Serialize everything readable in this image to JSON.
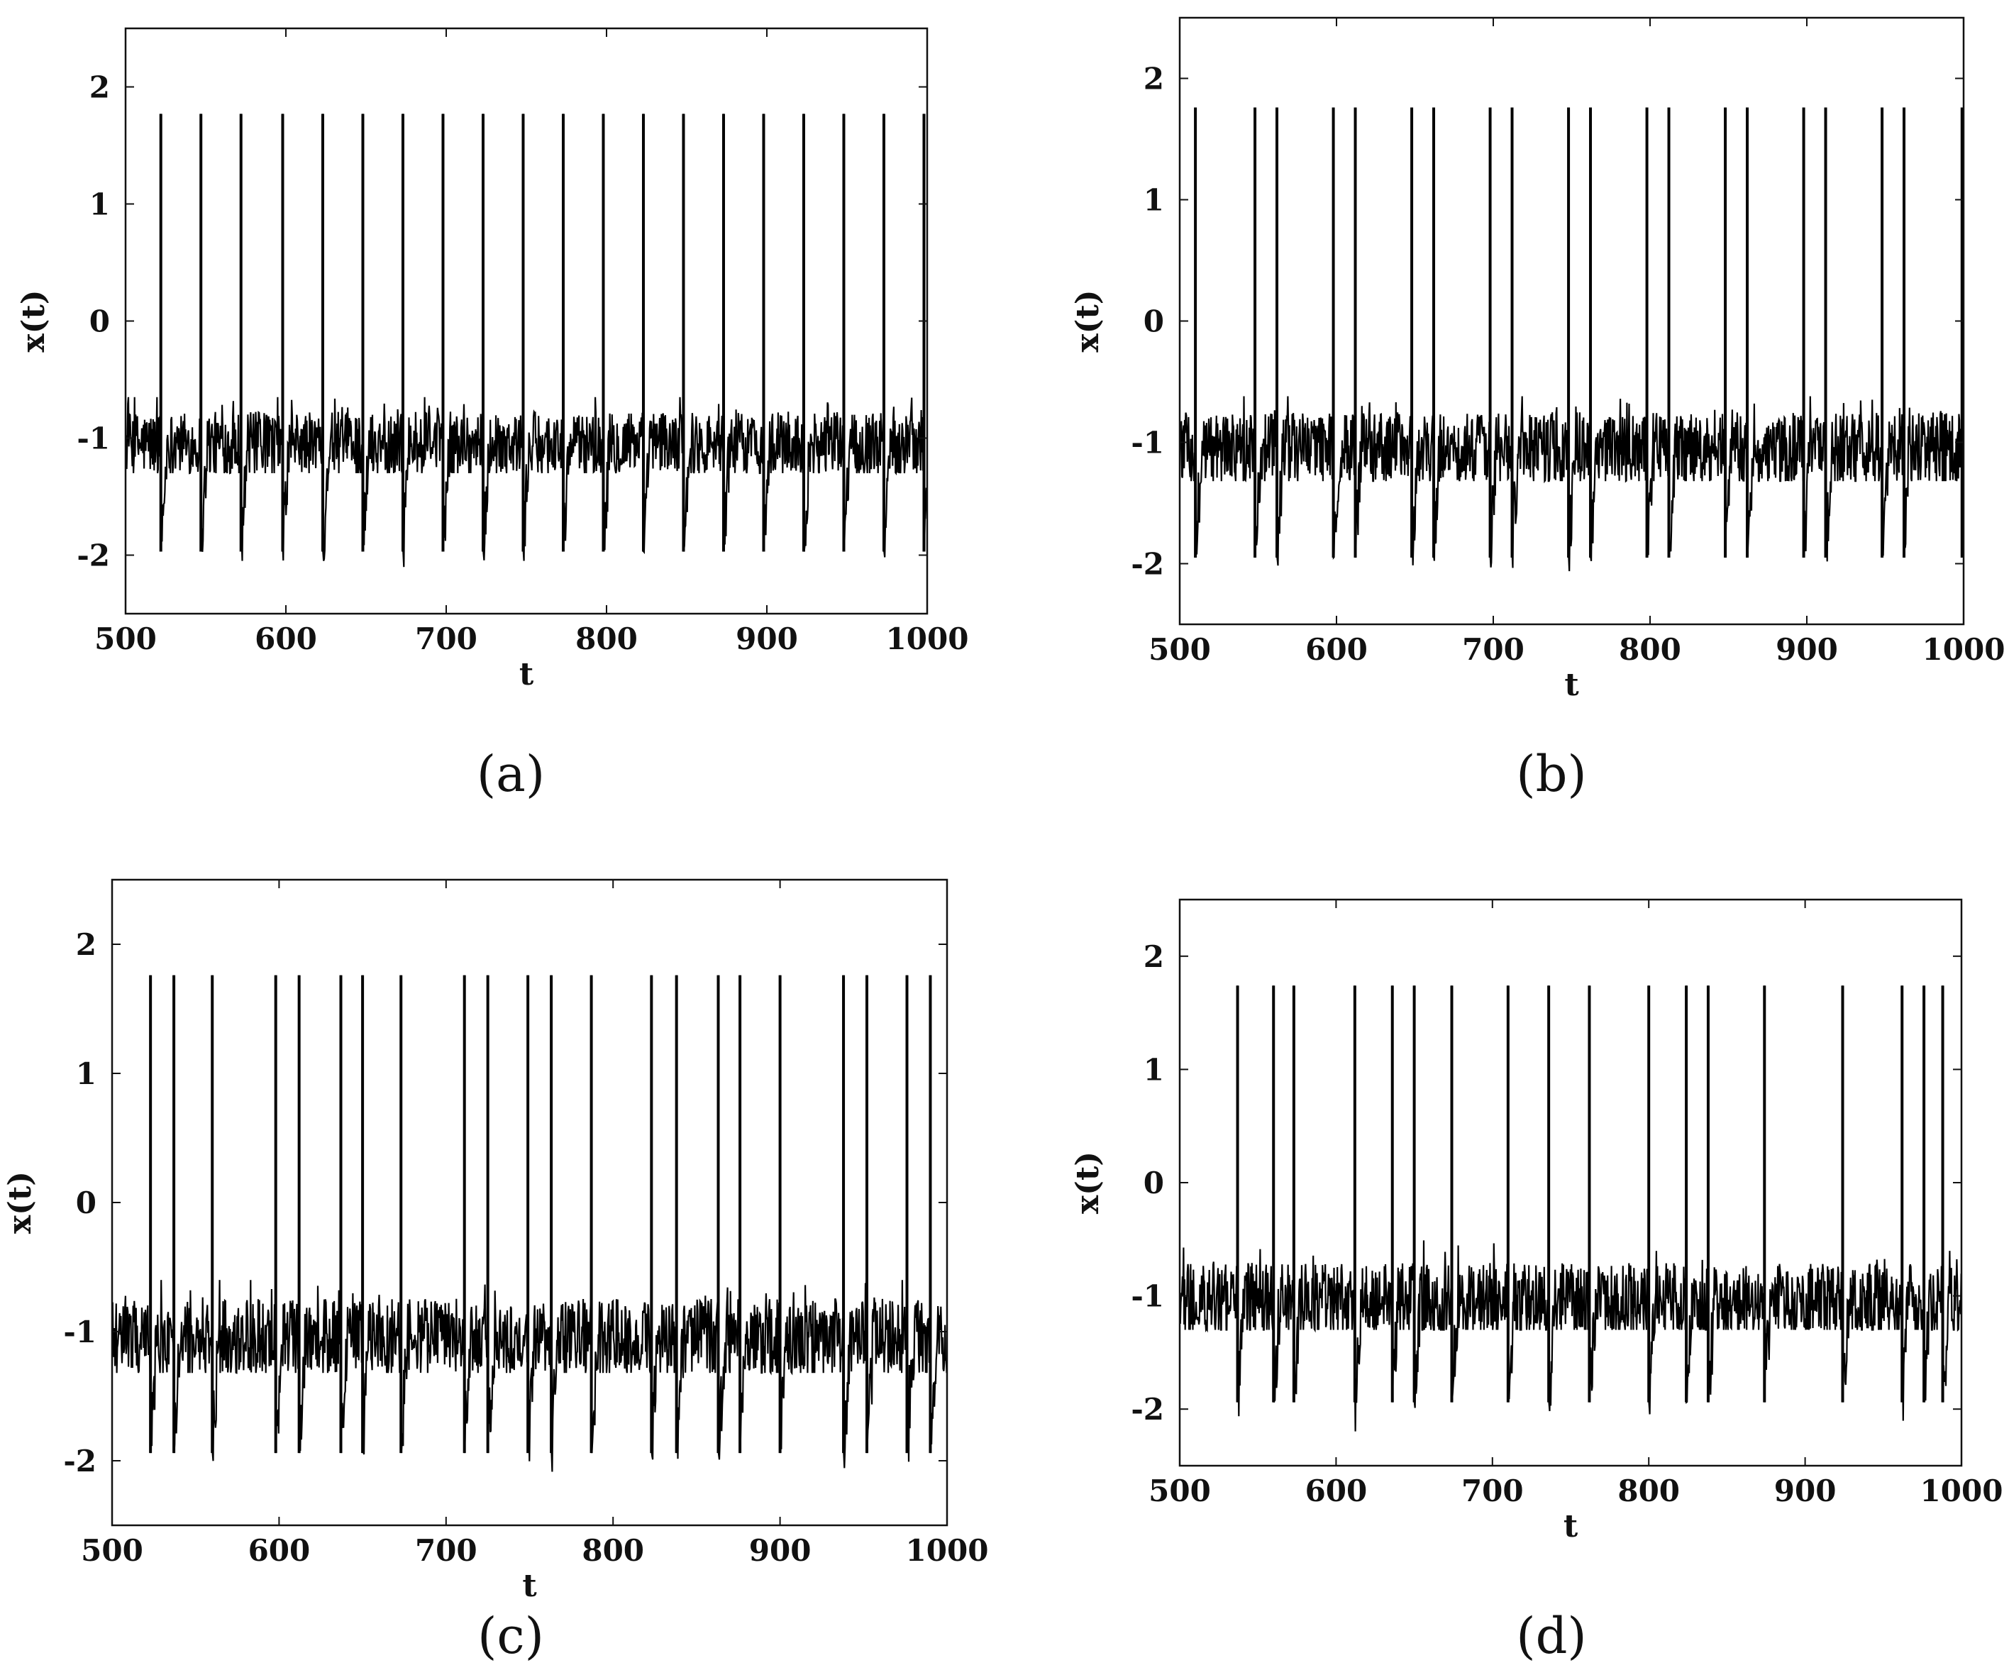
{
  "figure": {
    "panel_labels": [
      "(a)",
      "(b)",
      "(c)",
      "(d)"
    ]
  },
  "chart_data": [
    {
      "type": "line",
      "panel": "(a)",
      "xlabel": "t",
      "ylabel": "x(t)",
      "xlim": [
        500,
        1000
      ],
      "ylim": [
        -2.5,
        2.5
      ],
      "xticks": [
        "500",
        "600",
        "700",
        "800",
        "900",
        "1000"
      ],
      "yticks": [
        "-2",
        "-1",
        "0",
        "1",
        "2"
      ],
      "baseline": {
        "mean": -1.05,
        "min": -1.3,
        "max": -0.65
      },
      "spike_peak": 1.77,
      "spike_trough": -1.97,
      "spike_times": [
        522,
        547,
        572,
        598,
        623,
        648,
        673,
        698,
        723,
        748,
        773,
        798,
        823,
        848,
        873,
        898,
        923,
        948,
        973,
        998
      ]
    },
    {
      "type": "line",
      "panel": "(b)",
      "xlabel": "t",
      "ylabel": "x(t)",
      "xlim": [
        500,
        1000
      ],
      "ylim": [
        -2.5,
        2.5
      ],
      "xticks": [
        "500",
        "600",
        "700",
        "800",
        "900",
        "1000"
      ],
      "yticks": [
        "-2",
        "-1",
        "0",
        "1",
        "2"
      ],
      "baseline": {
        "mean": -1.05,
        "min": -1.32,
        "max": -0.62
      },
      "spike_peak": 1.76,
      "spike_trough": -1.95,
      "spike_times": [
        510,
        548,
        562,
        598,
        612,
        648,
        662,
        698,
        712,
        748,
        762,
        798,
        812,
        848,
        862,
        898,
        912,
        948,
        962,
        999
      ]
    },
    {
      "type": "line",
      "panel": "(c)",
      "xlabel": "t",
      "ylabel": "x(t)",
      "xlim": [
        500,
        1000
      ],
      "ylim": [
        -2.5,
        2.5
      ],
      "xticks": [
        "500",
        "600",
        "700",
        "800",
        "900",
        "1000"
      ],
      "yticks": [
        "-2",
        "-1",
        "0",
        "1",
        "2"
      ],
      "baseline": {
        "mean": -1.05,
        "min": -1.32,
        "max": -0.6
      },
      "spike_peak": 1.76,
      "spike_trough": -1.94,
      "spike_times": [
        523,
        537,
        560,
        598,
        612,
        637,
        650,
        673,
        711,
        725,
        749,
        763,
        787,
        823,
        838,
        863,
        876,
        900,
        938,
        952,
        976,
        990
      ]
    },
    {
      "type": "line",
      "panel": "(d)",
      "xlabel": "t",
      "ylabel": "x(t)",
      "xlim": [
        500,
        1000
      ],
      "ylim": [
        -2.5,
        2.5
      ],
      "xticks": [
        "500",
        "600",
        "700",
        "800",
        "900",
        "1000"
      ],
      "yticks": [
        "-2",
        "-1",
        "0",
        "1",
        "2"
      ],
      "baseline": {
        "mean": -1.05,
        "min": -1.3,
        "max": -0.5
      },
      "spike_peak": 1.74,
      "spike_trough": -1.94,
      "spike_times": [
        537,
        560,
        573,
        612,
        636,
        650,
        674,
        710,
        736,
        762,
        800,
        824,
        838,
        874,
        924,
        962,
        976,
        988
      ]
    }
  ]
}
